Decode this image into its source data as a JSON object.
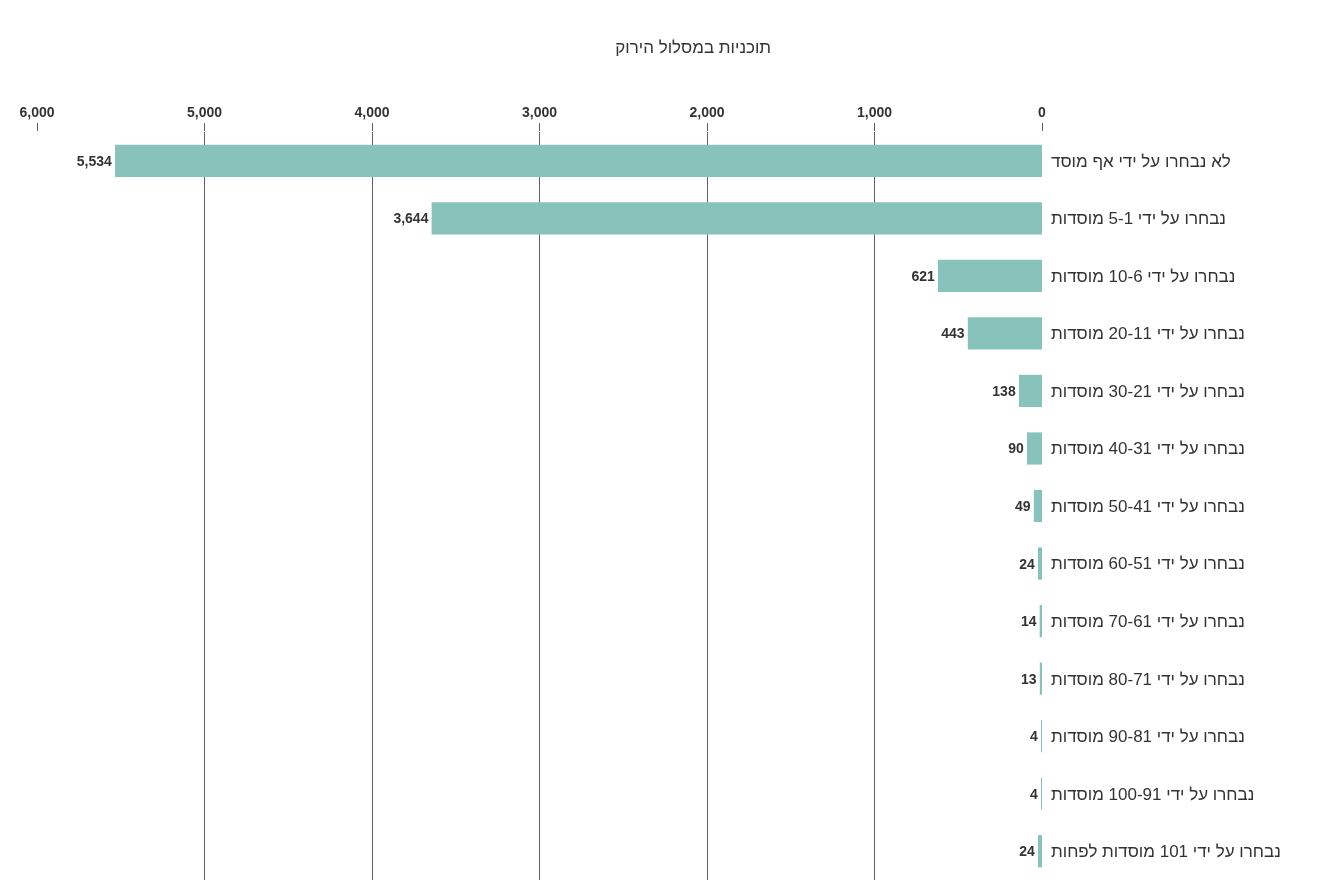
{
  "chart_data": {
    "type": "bar",
    "orientation": "horizontal",
    "title": "תוכניות במסלול הירוק",
    "categories": [
      "לא נבחרו על ידי אף מוסד",
      "נבחרו על ידי 5-1 מוסדות",
      "נבחרו על ידי 10-6 מוסדות",
      "נבחרו על ידי 20-11 מוסדות",
      "נבחרו על ידי 30-21 מוסדות",
      "נבחרו על ידי 40-31 מוסדות",
      "נבחרו על ידי 50-41 מוסדות",
      "נבחרו על ידי 60-51 מוסדות",
      "נבחרו על ידי 70-61 מוסדות",
      "נבחרו על ידי 80-71 מוסדות",
      "נבחרו על ידי 90-81 מוסדות",
      "נבחרו על ידי 100-91 מוסדות",
      "נבחרו על ידי 101 מוסדות לפחות"
    ],
    "values": [
      5534,
      3644,
      621,
      443,
      138,
      90,
      49,
      24,
      14,
      13,
      4,
      4,
      24
    ],
    "value_labels": [
      "5,534",
      "3,644",
      "621",
      "443",
      "138",
      "90",
      "49",
      "24",
      "14",
      "13",
      "4",
      "4",
      "24"
    ],
    "color": "#88c3bb",
    "xlim": [
      6000,
      0
    ],
    "xticks": [
      {
        "value": 6000,
        "label": "6,000"
      },
      {
        "value": 5000,
        "label": "5,000"
      },
      {
        "value": 4000,
        "label": "4,000"
      },
      {
        "value": 3000,
        "label": "3,000"
      },
      {
        "value": 2000,
        "label": "2,000"
      },
      {
        "value": 1000,
        "label": "1,000"
      },
      0
    ],
    "grid": "x"
  }
}
